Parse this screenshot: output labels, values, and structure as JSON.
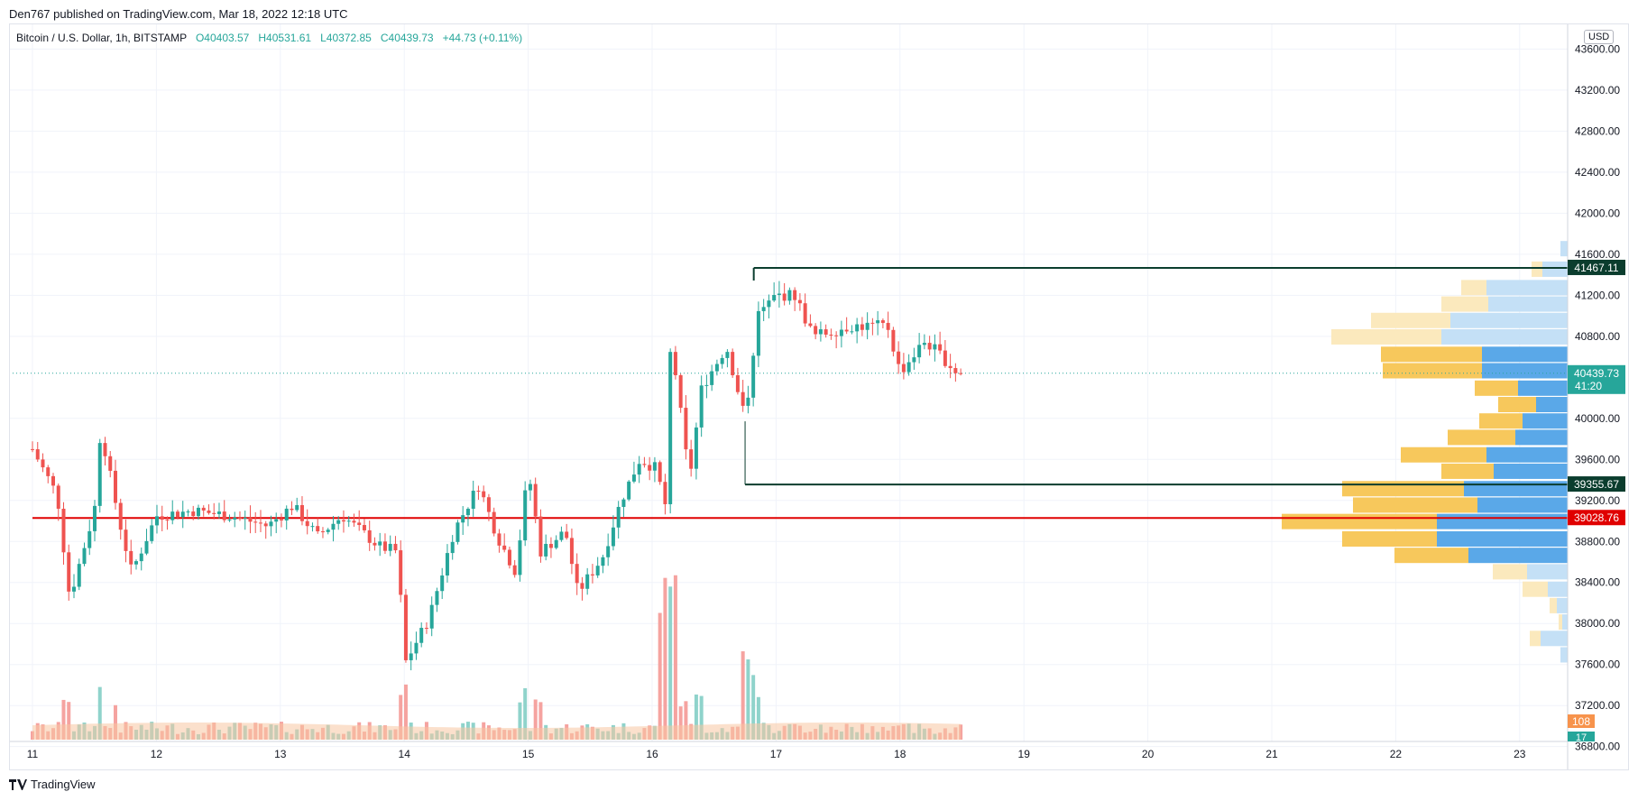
{
  "header": {
    "published": "Den767 published on TradingView.com, Mar 18, 2022 12:18 UTC",
    "symbol": "Bitcoin / U.S. Dollar, 1h, BITSTAMP",
    "open": "O40403.57",
    "high": "H40531.61",
    "low": "L40372.85",
    "close": "C40439.73",
    "change": "+44.73 (+0.11%)",
    "currency": "USD"
  },
  "footer": {
    "brand": "TradingView"
  },
  "colors": {
    "up": "#26a69a",
    "down": "#ef5350",
    "resistance": "#0b3d2e",
    "support_red": "#e00000",
    "price_tag": "#26a69a",
    "vol_ma": "#f7c6a3",
    "vp_yellow": "#f7c85c",
    "vp_blue": "#5aa8e8",
    "vp_yellow_light": "#fbe9bd",
    "vp_blue_light": "#c4e0f6"
  },
  "chart_data": {
    "type": "candlestick",
    "title": "Bitcoin / U.S. Dollar, 1h, BITSTAMP",
    "xlabel": "",
    "ylabel": "USD",
    "ylim": [
      36850,
      43850
    ],
    "x_ticks": [
      "11",
      "12",
      "13",
      "14",
      "15",
      "16",
      "17",
      "18",
      "19",
      "20",
      "21",
      "22",
      "23"
    ],
    "y_ticks": [
      43600.0,
      43200.0,
      42800.0,
      42400.0,
      42000.0,
      41600.0,
      41200.0,
      40800.0,
      40000.0,
      39600.0,
      39200.0,
      38800.0,
      38400.0,
      38000.0,
      37600.0,
      37200.0,
      36800.0
    ],
    "price_anchors_day_price": [
      [
        0.0,
        39700
      ],
      [
        0.2,
        39250
      ],
      [
        0.3,
        38250
      ],
      [
        0.5,
        39100
      ],
      [
        0.55,
        39900
      ],
      [
        0.7,
        39000
      ],
      [
        0.8,
        38500
      ],
      [
        1.0,
        39050
      ],
      [
        1.3,
        39100
      ],
      [
        1.6,
        39050
      ],
      [
        1.9,
        38950
      ],
      [
        2.1,
        39150
      ],
      [
        2.3,
        38850
      ],
      [
        2.5,
        39050
      ],
      [
        2.8,
        38750
      ],
      [
        2.95,
        38700
      ],
      [
        3.0,
        37600
      ],
      [
        3.2,
        38050
      ],
      [
        3.4,
        38900
      ],
      [
        3.6,
        39350
      ],
      [
        3.75,
        38850
      ],
      [
        3.9,
        38500
      ],
      [
        4.0,
        39500
      ],
      [
        4.1,
        38700
      ],
      [
        4.3,
        38900
      ],
      [
        4.4,
        38300
      ],
      [
        4.6,
        38650
      ],
      [
        4.75,
        39200
      ],
      [
        4.9,
        39600
      ],
      [
        5.05,
        39500
      ],
      [
        5.1,
        38950
      ],
      [
        5.15,
        40800
      ],
      [
        5.3,
        39400
      ],
      [
        5.4,
        40300
      ],
      [
        5.6,
        40700
      ],
      [
        5.75,
        40000
      ],
      [
        5.85,
        41000
      ],
      [
        6.0,
        41200
      ],
      [
        6.15,
        41200
      ],
      [
        6.3,
        40800
      ],
      [
        6.6,
        40900
      ],
      [
        6.9,
        40900
      ],
      [
        7.0,
        40450
      ],
      [
        7.2,
        40750
      ],
      [
        7.3,
        40650
      ],
      [
        7.45,
        40460
      ],
      [
        7.49,
        40440
      ]
    ],
    "series": [
      {
        "name": "Key levels",
        "values": [
          {
            "label": "41467.11",
            "price": 41467.11,
            "from_day": 5.82
          },
          {
            "label": "39355.67",
            "price": 39355.67,
            "from_day": 5.75
          },
          {
            "label": "39028.76",
            "price": 39028.76,
            "from_day": 0.0
          }
        ]
      },
      {
        "name": "Last price",
        "values": [
          {
            "label": "40439.73",
            "countdown": "41:20",
            "price": 40439.73
          }
        ]
      },
      {
        "name": "Volume",
        "values": [
          {
            "sell": "108",
            "buy": "17"
          }
        ]
      }
    ],
    "volume_profile": [
      {
        "price": 41650,
        "yellow": 0,
        "blue": 8,
        "light": true
      },
      {
        "price": 41450,
        "yellow": 12,
        "blue": 28,
        "light": true
      },
      {
        "price": 41270,
        "yellow": 28,
        "blue": 90,
        "light": true
      },
      {
        "price": 41110,
        "yellow": 52,
        "blue": 88,
        "light": true
      },
      {
        "price": 40950,
        "yellow": 88,
        "blue": 130,
        "light": true
      },
      {
        "price": 40790,
        "yellow": 122,
        "blue": 140,
        "light": true
      },
      {
        "price": 40620,
        "yellow": 112,
        "blue": 95,
        "light": false
      },
      {
        "price": 40460,
        "yellow": 110,
        "blue": 95,
        "light": false
      },
      {
        "price": 40290,
        "yellow": 48,
        "blue": 55,
        "light": false
      },
      {
        "price": 40130,
        "yellow": 42,
        "blue": 35,
        "light": false
      },
      {
        "price": 39970,
        "yellow": 48,
        "blue": 50,
        "light": false
      },
      {
        "price": 39810,
        "yellow": 75,
        "blue": 58,
        "light": false
      },
      {
        "price": 39640,
        "yellow": 95,
        "blue": 90,
        "light": false
      },
      {
        "price": 39480,
        "yellow": 58,
        "blue": 82,
        "light": false
      },
      {
        "price": 39310,
        "yellow": 135,
        "blue": 115,
        "light": false
      },
      {
        "price": 39150,
        "yellow": 138,
        "blue": 100,
        "light": false
      },
      {
        "price": 38990,
        "yellow": 172,
        "blue": 145,
        "light": false
      },
      {
        "price": 38820,
        "yellow": 105,
        "blue": 145,
        "light": false
      },
      {
        "price": 38660,
        "yellow": 82,
        "blue": 110,
        "light": false
      },
      {
        "price": 38500,
        "yellow": 38,
        "blue": 45,
        "light": true
      },
      {
        "price": 38330,
        "yellow": 28,
        "blue": 22,
        "light": true
      },
      {
        "price": 38170,
        "yellow": 8,
        "blue": 12,
        "light": true
      },
      {
        "price": 38010,
        "yellow": 4,
        "blue": 6,
        "light": true
      },
      {
        "price": 37850,
        "yellow": 12,
        "blue": 30,
        "light": true
      },
      {
        "price": 37690,
        "yellow": 0,
        "blue": 8,
        "light": true
      }
    ]
  }
}
